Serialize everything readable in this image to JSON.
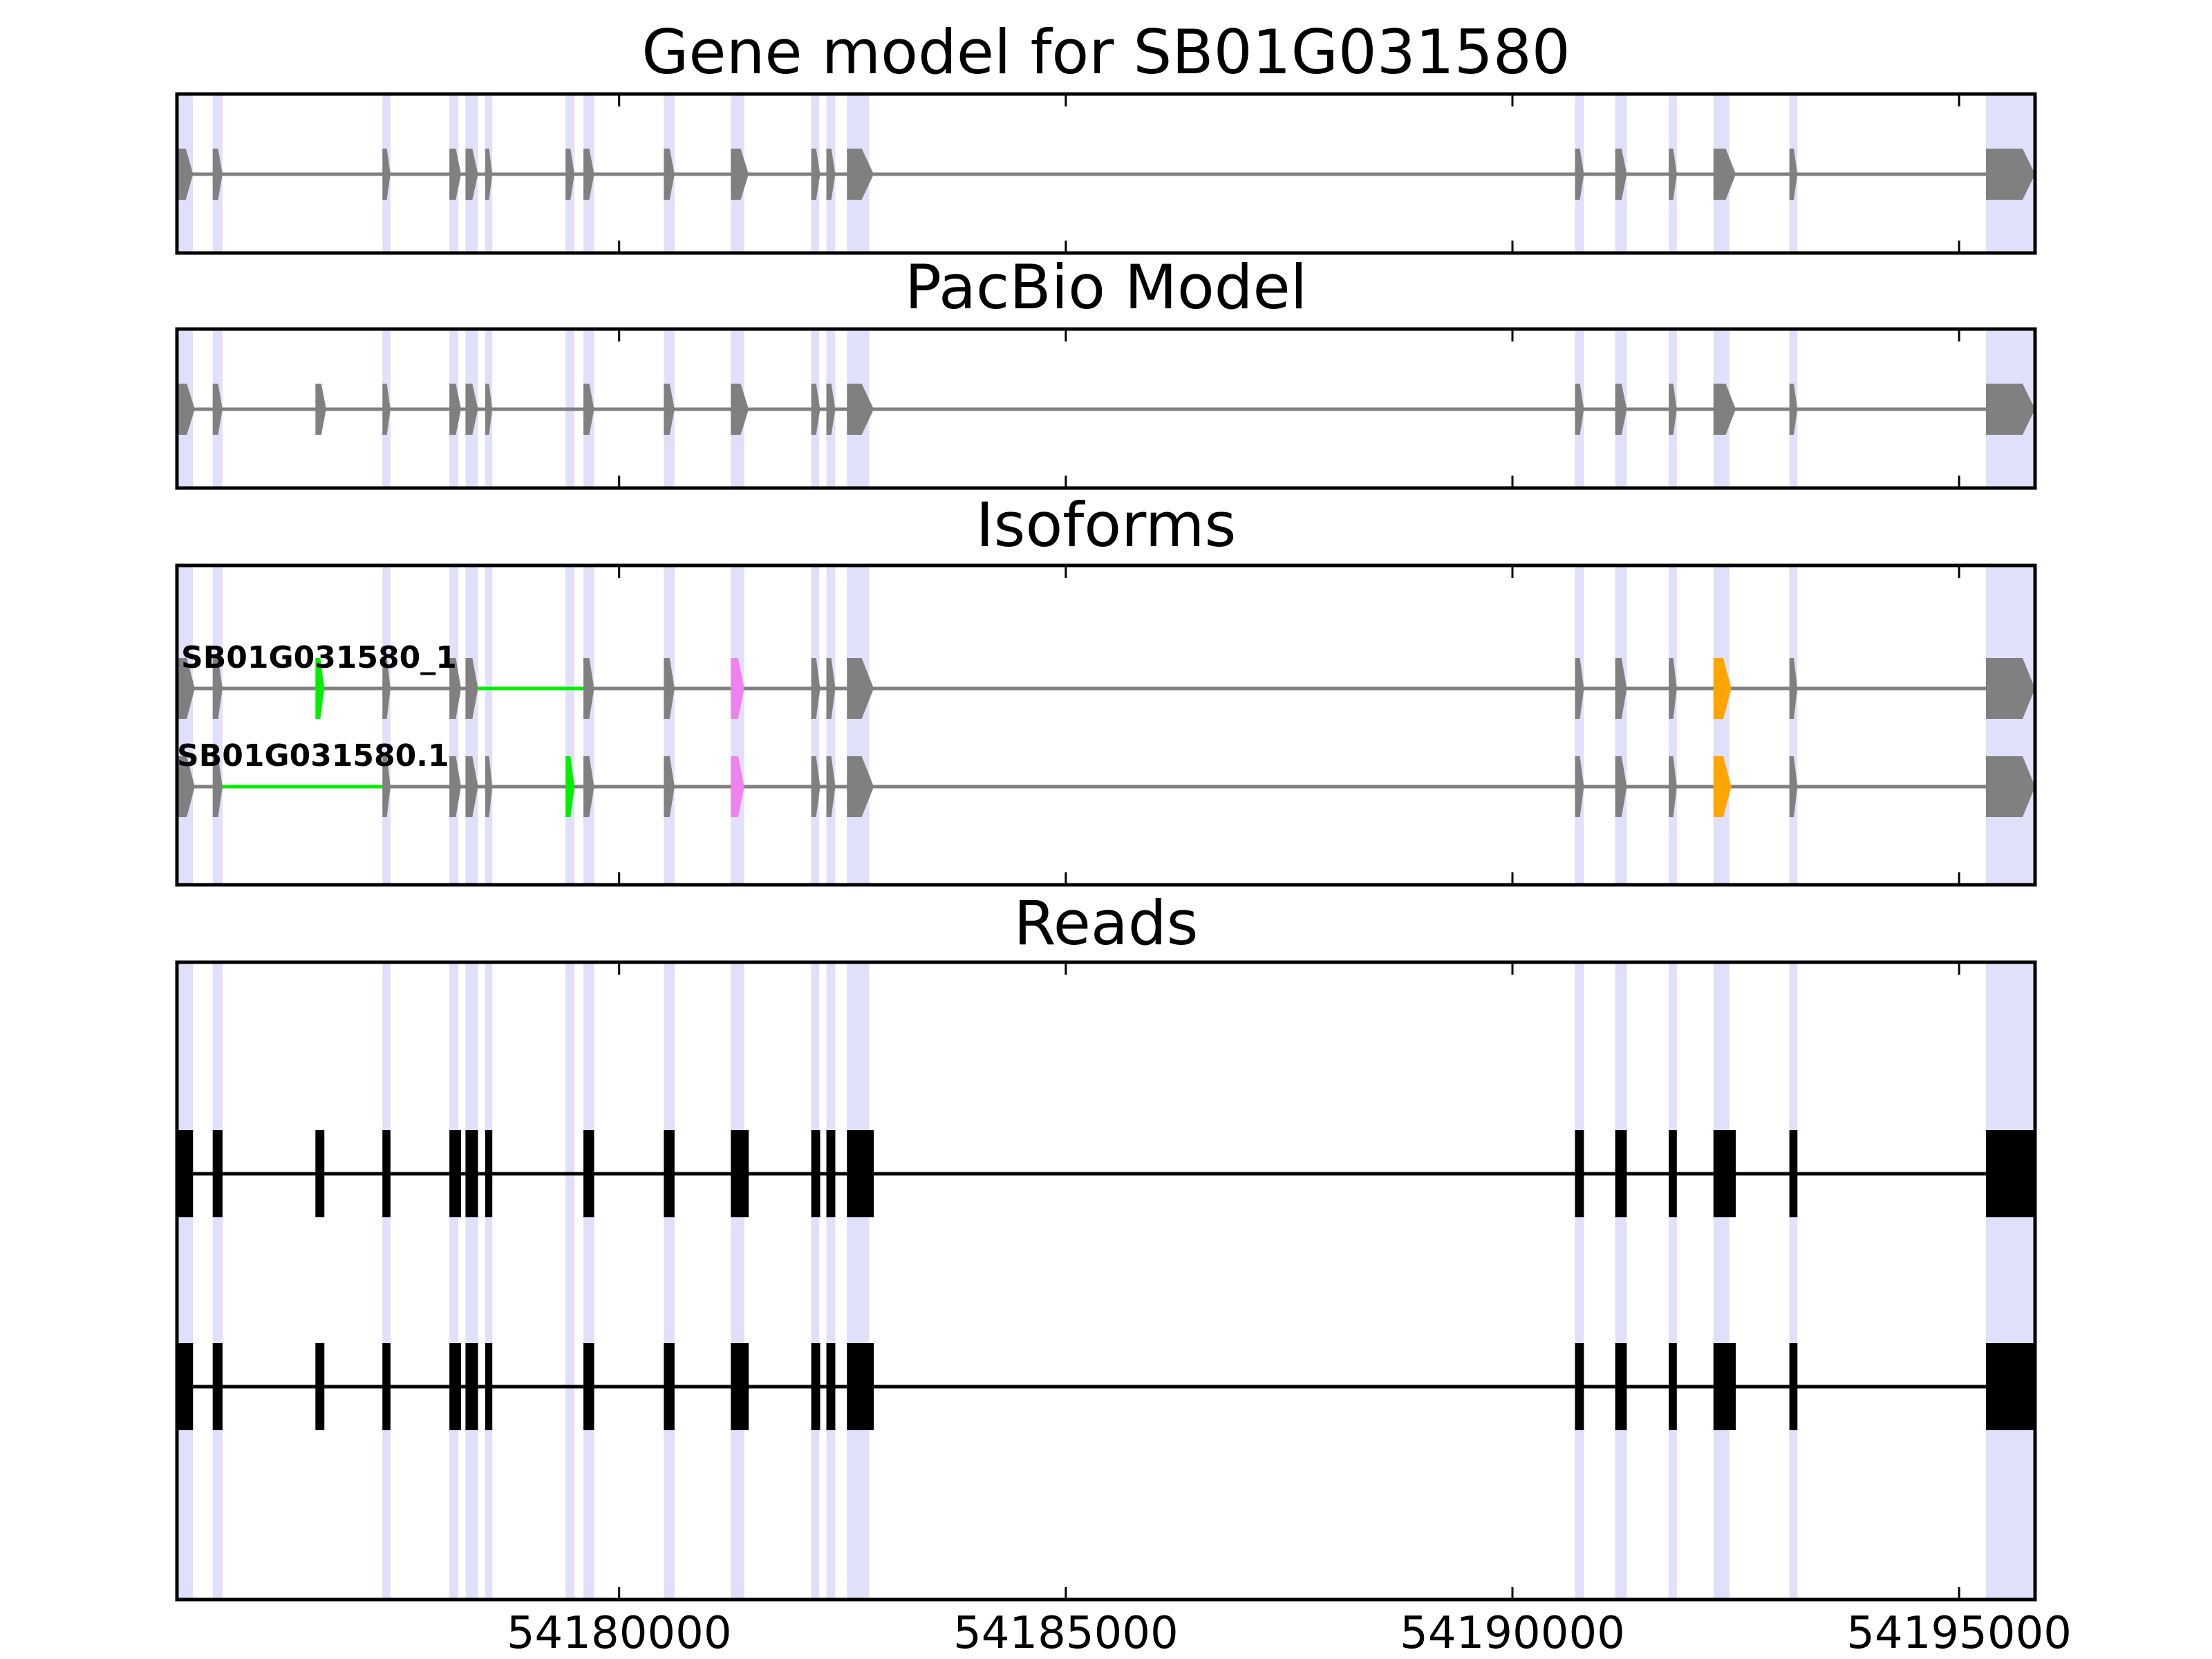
{
  "chart_data": {
    "type": "gene-track",
    "x_range": [
      54175050,
      54195850
    ],
    "x_ticks": [
      54180000,
      54185000,
      54190000,
      54195000
    ],
    "x_tick_labels": [
      "54180000",
      "54185000",
      "54190000",
      "54195000"
    ],
    "shaded_regions": [
      [
        54175050,
        54175230
      ],
      [
        54175450,
        54175560
      ],
      [
        54177350,
        54177440
      ],
      [
        54178100,
        54178200
      ],
      [
        54178280,
        54178420
      ],
      [
        54178500,
        54178580
      ],
      [
        54179400,
        54179500
      ],
      [
        54179600,
        54179720
      ],
      [
        54180500,
        54180620
      ],
      [
        54181250,
        54181400
      ],
      [
        54182150,
        54182240
      ],
      [
        54182320,
        54182420
      ],
      [
        54182550,
        54182800
      ],
      [
        54190700,
        54190800
      ],
      [
        54191150,
        54191280
      ],
      [
        54191750,
        54191840
      ],
      [
        54192250,
        54192430
      ],
      [
        54193100,
        54193190
      ],
      [
        54195300,
        54195850
      ]
    ],
    "panels": [
      {
        "title": "Gene model for SB01G031580",
        "tracks": [
          {
            "label": "",
            "color": "#808080",
            "exons": [
              [
                54175050,
                54175230
              ],
              [
                54175450,
                54175560
              ],
              [
                54177350,
                54177440
              ],
              [
                54178100,
                54178230
              ],
              [
                54178280,
                54178420
              ],
              [
                54178500,
                54178580
              ],
              [
                54179400,
                54179500
              ],
              [
                54179600,
                54179720
              ],
              [
                54180500,
                54180620
              ],
              [
                54181250,
                54181450
              ],
              [
                54182150,
                54182250
              ],
              [
                54182320,
                54182420
              ],
              [
                54182550,
                54182850
              ],
              [
                54190700,
                54190800
              ],
              [
                54191150,
                54191280
              ],
              [
                54191750,
                54191840
              ],
              [
                54192250,
                54192500
              ],
              [
                54193100,
                54193190
              ],
              [
                54195300,
                54195850
              ]
            ]
          }
        ]
      },
      {
        "title": "PacBio Model",
        "tracks": [
          {
            "label": "",
            "color": "#808080",
            "exons": [
              [
                54175050,
                54175250
              ],
              [
                54175450,
                54175560
              ],
              [
                54176600,
                54176720
              ],
              [
                54177350,
                54177440
              ],
              [
                54178100,
                54178230
              ],
              [
                54178280,
                54178420
              ],
              [
                54178500,
                54178580
              ],
              [
                54179600,
                54179720
              ],
              [
                54180500,
                54180620
              ],
              [
                54181250,
                54181450
              ],
              [
                54182150,
                54182250
              ],
              [
                54182320,
                54182420
              ],
              [
                54182550,
                54182850
              ],
              [
                54190700,
                54190800
              ],
              [
                54191150,
                54191280
              ],
              [
                54191750,
                54191840
              ],
              [
                54192250,
                54192500
              ],
              [
                54193100,
                54193190
              ],
              [
                54195300,
                54195850
              ]
            ]
          }
        ]
      },
      {
        "title": "Isoforms",
        "tracks": [
          {
            "label": "SB01G031580_1",
            "color": "#808080",
            "exons": [
              [
                54175050,
                54175250
              ],
              [
                54175450,
                54175560
              ],
              [
                54176600,
                54176700,
                "#00ee00"
              ],
              [
                54177350,
                54177440
              ],
              [
                54178100,
                54178230
              ],
              [
                54178280,
                54178420
              ],
              [
                54179600,
                54179720
              ],
              [
                54180500,
                54180620
              ],
              [
                54181250,
                54181400,
                "#ee82ee"
              ],
              [
                54182150,
                54182250
              ],
              [
                54182320,
                54182420
              ],
              [
                54182550,
                54182850
              ],
              [
                54190700,
                54190800
              ],
              [
                54191150,
                54191280
              ],
              [
                54191750,
                54191840
              ],
              [
                54192250,
                54192450,
                "#ffa500"
              ],
              [
                54193100,
                54193190
              ],
              [
                54195300,
                54195850
              ]
            ],
            "green_introns": [
              [
                54178420,
                54179600
              ]
            ]
          },
          {
            "label": "SB01G031580.1",
            "color": "#808080",
            "exons": [
              [
                54175050,
                54175250
              ],
              [
                54175450,
                54175560
              ],
              [
                54177350,
                54177440
              ],
              [
                54178100,
                54178230
              ],
              [
                54178280,
                54178420
              ],
              [
                54178500,
                54178580
              ],
              [
                54179400,
                54179500,
                "#00ee00"
              ],
              [
                54179600,
                54179720
              ],
              [
                54180500,
                54180620
              ],
              [
                54181250,
                54181400,
                "#ee82ee"
              ],
              [
                54182150,
                54182250
              ],
              [
                54182320,
                54182420
              ],
              [
                54182550,
                54182850
              ],
              [
                54190700,
                54190800
              ],
              [
                54191150,
                54191280
              ],
              [
                54191750,
                54191840
              ],
              [
                54192250,
                54192450,
                "#ffa500"
              ],
              [
                54193100,
                54193190
              ],
              [
                54195300,
                54195850
              ]
            ],
            "green_introns": [
              [
                54175560,
                54177350
              ]
            ]
          }
        ]
      },
      {
        "title": "Reads",
        "tracks": [
          {
            "label": "",
            "color": "#000000",
            "exons": [
              [
                54175050,
                54175230
              ],
              [
                54175450,
                54175560
              ],
              [
                54176600,
                54176700
              ],
              [
                54177350,
                54177440
              ],
              [
                54178100,
                54178230
              ],
              [
                54178280,
                54178420
              ],
              [
                54178500,
                54178580
              ],
              [
                54179600,
                54179720
              ],
              [
                54180500,
                54180620
              ],
              [
                54181250,
                54181450
              ],
              [
                54182150,
                54182250
              ],
              [
                54182320,
                54182420
              ],
              [
                54182550,
                54182850
              ],
              [
                54190700,
                54190800
              ],
              [
                54191150,
                54191280
              ],
              [
                54191750,
                54191840
              ],
              [
                54192250,
                54192500
              ],
              [
                54193100,
                54193190
              ],
              [
                54195300,
                54195850
              ]
            ]
          },
          {
            "label": "",
            "color": "#000000",
            "exons": [
              [
                54175050,
                54175230
              ],
              [
                54175450,
                54175560
              ],
              [
                54176600,
                54176700
              ],
              [
                54177350,
                54177440
              ],
              [
                54178100,
                54178230
              ],
              [
                54178280,
                54178420
              ],
              [
                54178500,
                54178580
              ],
              [
                54179600,
                54179720
              ],
              [
                54180500,
                54180620
              ],
              [
                54181250,
                54181450
              ],
              [
                54182150,
                54182250
              ],
              [
                54182320,
                54182420
              ],
              [
                54182550,
                54182850
              ],
              [
                54190700,
                54190800
              ],
              [
                54191150,
                54191280
              ],
              [
                54191750,
                54191840
              ],
              [
                54192250,
                54192500
              ],
              [
                54193100,
                54193190
              ],
              [
                54195300,
                54195850
              ]
            ]
          }
        ]
      }
    ],
    "colors": {
      "shade": "#e0e0fa",
      "gene_model": "#808080",
      "read": "#000000",
      "intron_green": "#00ee00",
      "violet": "#ee82ee",
      "orange": "#ffa500"
    }
  }
}
